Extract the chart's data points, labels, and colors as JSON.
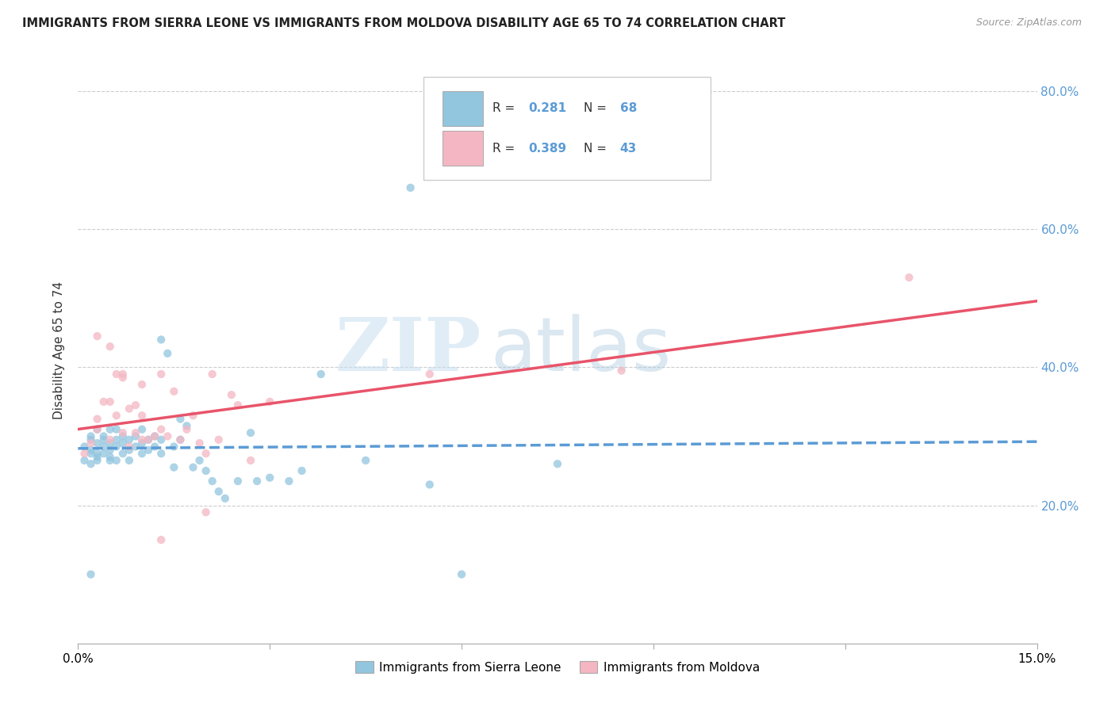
{
  "title": "IMMIGRANTS FROM SIERRA LEONE VS IMMIGRANTS FROM MOLDOVA DISABILITY AGE 65 TO 74 CORRELATION CHART",
  "source": "Source: ZipAtlas.com",
  "ylabel": "Disability Age 65 to 74",
  "xmin": 0.0,
  "xmax": 0.15,
  "ymin": 0.0,
  "ymax": 0.85,
  "yticks": [
    0.2,
    0.4,
    0.6,
    0.8
  ],
  "ytick_labels": [
    "20.0%",
    "40.0%",
    "60.0%",
    "80.0%"
  ],
  "sierra_leone_color": "#92c5de",
  "moldova_color": "#f4b6c2",
  "sierra_leone_line_color": "#5b9bd5",
  "moldova_line_color": "#e8546a",
  "R_sierra": 0.281,
  "N_sierra": 68,
  "R_moldova": 0.389,
  "N_moldova": 43,
  "legend_label_sierra": "Immigrants from Sierra Leone",
  "legend_label_moldova": "Immigrants from Moldova",
  "watermark_zip": "ZIP",
  "watermark_atlas": "atlas",
  "sl_x": [
    0.001,
    0.001,
    0.002,
    0.002,
    0.002,
    0.002,
    0.002,
    0.003,
    0.003,
    0.003,
    0.003,
    0.003,
    0.004,
    0.004,
    0.004,
    0.004,
    0.005,
    0.005,
    0.005,
    0.005,
    0.005,
    0.006,
    0.006,
    0.006,
    0.006,
    0.007,
    0.007,
    0.007,
    0.008,
    0.008,
    0.008,
    0.009,
    0.009,
    0.01,
    0.01,
    0.01,
    0.011,
    0.011,
    0.012,
    0.012,
    0.013,
    0.013,
    0.014,
    0.015,
    0.015,
    0.016,
    0.016,
    0.017,
    0.018,
    0.019,
    0.02,
    0.021,
    0.022,
    0.023,
    0.025,
    0.027,
    0.028,
    0.03,
    0.033,
    0.035,
    0.038,
    0.045,
    0.055,
    0.06,
    0.075,
    0.013,
    0.052,
    0.002
  ],
  "sl_y": [
    0.285,
    0.265,
    0.28,
    0.275,
    0.295,
    0.26,
    0.3,
    0.27,
    0.29,
    0.275,
    0.31,
    0.265,
    0.285,
    0.295,
    0.275,
    0.3,
    0.265,
    0.29,
    0.28,
    0.31,
    0.27,
    0.285,
    0.295,
    0.265,
    0.31,
    0.275,
    0.29,
    0.3,
    0.28,
    0.295,
    0.265,
    0.285,
    0.3,
    0.29,
    0.275,
    0.31,
    0.28,
    0.295,
    0.285,
    0.3,
    0.295,
    0.275,
    0.42,
    0.285,
    0.255,
    0.325,
    0.295,
    0.315,
    0.255,
    0.265,
    0.25,
    0.235,
    0.22,
    0.21,
    0.235,
    0.305,
    0.235,
    0.24,
    0.235,
    0.25,
    0.39,
    0.265,
    0.23,
    0.1,
    0.26,
    0.44,
    0.66,
    0.1
  ],
  "md_x": [
    0.001,
    0.002,
    0.003,
    0.003,
    0.004,
    0.005,
    0.005,
    0.006,
    0.006,
    0.007,
    0.007,
    0.008,
    0.008,
    0.009,
    0.01,
    0.01,
    0.011,
    0.012,
    0.013,
    0.013,
    0.014,
    0.015,
    0.016,
    0.017,
    0.018,
    0.019,
    0.02,
    0.021,
    0.022,
    0.024,
    0.025,
    0.027,
    0.03,
    0.055,
    0.085,
    0.003,
    0.005,
    0.007,
    0.009,
    0.01,
    0.013,
    0.13,
    0.02
  ],
  "md_y": [
    0.275,
    0.29,
    0.325,
    0.31,
    0.35,
    0.295,
    0.35,
    0.33,
    0.39,
    0.305,
    0.39,
    0.285,
    0.34,
    0.305,
    0.295,
    0.33,
    0.295,
    0.3,
    0.31,
    0.39,
    0.3,
    0.365,
    0.295,
    0.31,
    0.33,
    0.29,
    0.275,
    0.39,
    0.295,
    0.36,
    0.345,
    0.265,
    0.35,
    0.39,
    0.395,
    0.445,
    0.43,
    0.385,
    0.345,
    0.375,
    0.15,
    0.53,
    0.19
  ]
}
